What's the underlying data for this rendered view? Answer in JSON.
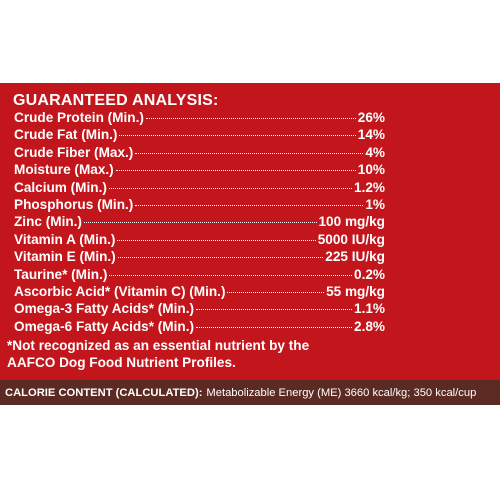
{
  "analysis": {
    "title": "GUARANTEED ANALYSIS:",
    "rows": [
      {
        "label": "Crude Protein (Min.)",
        "value": "26%"
      },
      {
        "label": "Crude Fat (Min.)",
        "value": "14%"
      },
      {
        "label": "Crude Fiber (Max.)",
        "value": "4%"
      },
      {
        "label": "Moisture (Max.)",
        "value": "10%"
      },
      {
        "label": "Calcium (Min.)",
        "value": "1.2%"
      },
      {
        "label": "Phosphorus (Min.)",
        "value": "1%"
      },
      {
        "label": "Zinc (Min.)",
        "value": "100 mg/kg"
      },
      {
        "label": "Vitamin A (Min.)",
        "value": "5000 IU/kg"
      },
      {
        "label": "Vitamin E (Min.)",
        "value": "225 IU/kg"
      },
      {
        "label": "Taurine* (Min.)",
        "value": "0.2%"
      },
      {
        "label": "Ascorbic Acid* (Vitamin C) (Min.)",
        "value": "55 mg/kg"
      },
      {
        "label": "Omega-3 Fatty Acids* (Min.)",
        "value": "1.1%"
      },
      {
        "label": "Omega-6 Fatty Acids* (Min.)",
        "value": "2.8%"
      }
    ],
    "footnote": [
      "*Not recognized as an essential nutrient by the",
      "AAFCO Dog Food Nutrient Profiles."
    ]
  },
  "calorie": {
    "label": "CALORIE CONTENT (CALCULATED):",
    "text": "Metabolizable Energy (ME) 3660 kcal/kg; 350 kcal/cup"
  }
}
